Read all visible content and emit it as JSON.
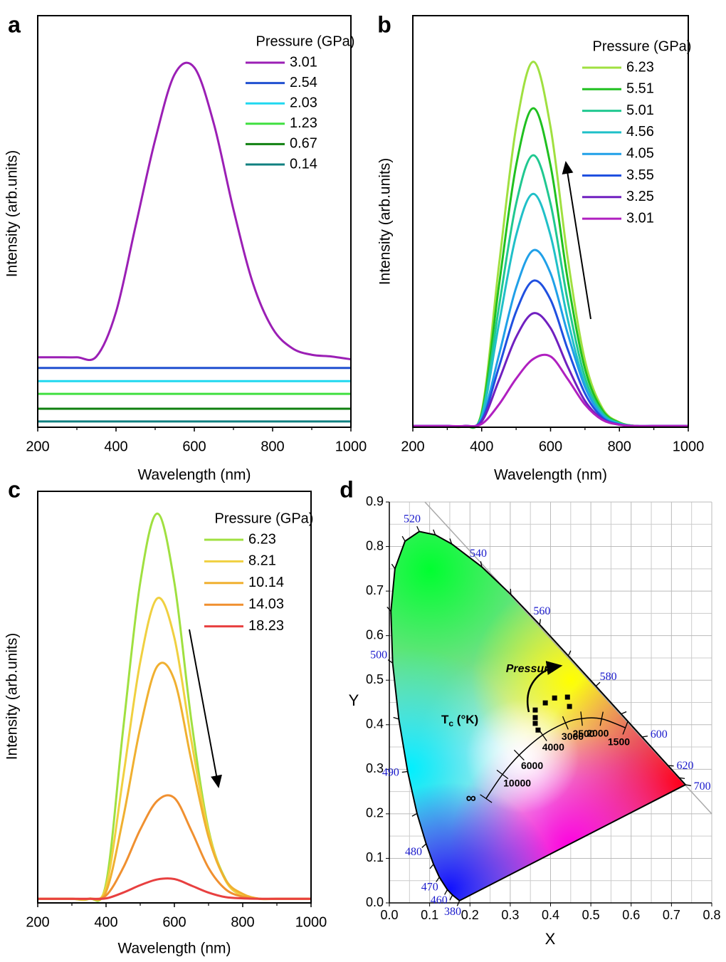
{
  "chart_data": [
    {
      "type": "line",
      "panel_label": "a",
      "xlabel": "Wavelength (nm)",
      "ylabel": "Intensity (arb.units)",
      "legend_title": "Pressure (GPa)",
      "legend": "upper right",
      "grid": false,
      "xlim": [
        200,
        1000
      ],
      "ylim": [
        0,
        100
      ],
      "xticks": [
        200,
        400,
        600,
        800,
        1000
      ],
      "x": [
        200,
        250,
        300,
        350,
        400,
        450,
        500,
        550,
        600,
        650,
        700,
        750,
        800,
        850,
        900,
        950,
        1000
      ],
      "series": [
        {
          "name": "3.01",
          "color": "#9b1fb5",
          "values": [
            17,
            17,
            17,
            17.2,
            28,
            48.9,
            69.8,
            85.8,
            87.4,
            73.7,
            52.9,
            34.9,
            24,
            19.2,
            17.6,
            17.2,
            16.5
          ]
        },
        {
          "name": "2.54",
          "color": "#2050d0",
          "values": [
            14.4,
            14.4,
            14.4,
            14.4,
            14.4,
            14.4,
            14.4,
            14.4,
            14.4,
            14.4,
            14.4,
            14.4,
            14.4,
            14.4,
            14.4,
            14.4,
            14.4
          ]
        },
        {
          "name": "2.03",
          "color": "#20d8f0",
          "values": [
            11.2,
            11.2,
            11.2,
            11.2,
            11.2,
            11.2,
            11.2,
            11.2,
            11.2,
            11.2,
            11.2,
            11.2,
            11.2,
            11.2,
            11.2,
            11.2,
            11.2
          ]
        },
        {
          "name": "1.23",
          "color": "#40e040",
          "values": [
            8.1,
            8.1,
            8.1,
            8.1,
            8.1,
            8.1,
            8.1,
            8.1,
            8.1,
            8.1,
            8.1,
            8.1,
            8.1,
            8.1,
            8.1,
            8.1,
            8.1
          ]
        },
        {
          "name": "0.67",
          "color": "#108010",
          "values": [
            4.5,
            4.5,
            4.5,
            4.5,
            4.5,
            4.5,
            4.5,
            4.5,
            4.5,
            4.5,
            4.5,
            4.5,
            4.5,
            4.5,
            4.5,
            4.5,
            4.5
          ]
        },
        {
          "name": "0.14",
          "color": "#108080",
          "values": [
            1.4,
            1.4,
            1.4,
            1.4,
            1.4,
            1.4,
            1.4,
            1.4,
            1.4,
            1.4,
            1.4,
            1.4,
            1.4,
            1.4,
            1.4,
            1.4,
            1.4
          ]
        }
      ]
    },
    {
      "type": "line",
      "panel_label": "b",
      "xlabel": "Wavelength (nm)",
      "ylabel": "Intensity (arb.units)",
      "legend_title": "Pressure (GPa)",
      "legend": "upper right",
      "grid": false,
      "xlim": [
        200,
        1000
      ],
      "ylim": [
        0,
        100
      ],
      "xticks": [
        200,
        400,
        600,
        800,
        1000
      ],
      "x": [
        200,
        250,
        300,
        350,
        400,
        450,
        500,
        550,
        600,
        650,
        700,
        750,
        800,
        850,
        900,
        950,
        1000
      ],
      "series": [
        {
          "name": "6.23",
          "color": "#a0e040",
          "values": [
            0.3,
            0.3,
            0.3,
            0.3,
            3.8,
            39.2,
            72.9,
            88.8,
            72.9,
            41.0,
            16.2,
            4.7,
            1.2,
            0.3,
            0.3,
            0.3,
            0.3
          ]
        },
        {
          "name": "5.51",
          "color": "#20c020",
          "values": [
            0.3,
            0.3,
            0.3,
            0.3,
            3.4,
            34.3,
            63.6,
            77.5,
            63.6,
            35.8,
            14.2,
            4.2,
            1.1,
            0.3,
            0.3,
            0.3,
            0.3
          ]
        },
        {
          "name": "5.01",
          "color": "#20c890",
          "values": [
            0.3,
            0.3,
            0.3,
            0.3,
            2.9,
            29.2,
            54.3,
            66.1,
            54.3,
            30.6,
            12.1,
            3.6,
            1.0,
            0.3,
            0.3,
            0.3,
            0.3
          ]
        },
        {
          "name": "4.56",
          "color": "#20c0c8",
          "values": [
            0.3,
            0.3,
            0.3,
            0.3,
            2.6,
            25.1,
            46.6,
            56.7,
            46.6,
            26.2,
            10.5,
            3.1,
            0.9,
            0.3,
            0.3,
            0.3,
            0.3
          ]
        },
        {
          "name": "4.05",
          "color": "#20a0e8",
          "values": [
            0.3,
            0.3,
            0.3,
            0.3,
            2.0,
            17.5,
            33.9,
            43,
            37.4,
            22.7,
            9.8,
            2.9,
            0.7,
            0.3,
            0.3,
            0.3,
            0.3
          ]
        },
        {
          "name": "3.55",
          "color": "#2050e0",
          "values": [
            0.3,
            0.3,
            0.3,
            0.3,
            1.7,
            14.6,
            28.1,
            35.6,
            31,
            18.9,
            8.2,
            2.4,
            0.7,
            0.3,
            0.3,
            0.3,
            0.3
          ]
        },
        {
          "name": "3.25",
          "color": "#7020c0",
          "values": [
            0.3,
            0.3,
            0.3,
            0.3,
            1.4,
            11.4,
            21.9,
            27.7,
            24.1,
            14.7,
            6.4,
            2,
            0.6,
            0.3,
            0.3,
            0.3,
            0.3
          ]
        },
        {
          "name": "3.01",
          "color": "#b020c0",
          "values": [
            0.3,
            0.3,
            0.3,
            0.3,
            0.8,
            5.5,
            11.8,
            16.6,
            17.2,
            11.7,
            5.5,
            1.8,
            0.6,
            0.3,
            0.3,
            0.3,
            0.3
          ]
        }
      ]
    },
    {
      "type": "line",
      "panel_label": "c",
      "xlabel": "Wavelength (nm)",
      "ylabel": "Intensity (arb.units)",
      "legend_title": "Pressure (GPa)",
      "legend": "upper right",
      "grid": false,
      "xlim": [
        200,
        1000
      ],
      "ylim": [
        0,
        100
      ],
      "xticks": [
        200,
        400,
        600,
        800,
        1000
      ],
      "x": [
        200,
        250,
        300,
        350,
        400,
        450,
        500,
        550,
        600,
        650,
        700,
        750,
        800,
        850,
        900,
        950,
        1000
      ],
      "series": [
        {
          "name": "6.23",
          "color": "#a0e040",
          "values": [
            1,
            1,
            1,
            1,
            4.7,
            42.2,
            77.8,
            94.6,
            77.8,
            44.1,
            17.8,
            5.7,
            1.9,
            1,
            1,
            1,
            1
          ]
        },
        {
          "name": "8.21",
          "color": "#f0d040",
          "values": [
            1,
            1,
            1,
            1,
            3.9,
            30.5,
            58.5,
            74,
            64.4,
            39.3,
            17.2,
            5.4,
            1.7,
            1,
            1,
            1,
            1
          ]
        },
        {
          "name": "10.14",
          "color": "#f0b030",
          "values": [
            1,
            1,
            1,
            1,
            2.7,
            20.6,
            42.5,
            57.5,
            54.1,
            34.5,
            16,
            5.6,
            2.2,
            1,
            1,
            1,
            1
          ]
        },
        {
          "name": "14.03",
          "color": "#f09030",
          "values": [
            1,
            1,
            1,
            1,
            1.8,
            8.5,
            17.8,
            24.8,
            25.5,
            17.5,
            8.5,
            3.3,
            1.5,
            1,
            1,
            1,
            1
          ]
        },
        {
          "name": "18.23",
          "color": "#e84040",
          "values": [
            1,
            1,
            1,
            1,
            1.1,
            2.5,
            4.3,
            5.7,
            5.8,
            4.2,
            2.5,
            1.4,
            1.1,
            1,
            1,
            1,
            1
          ]
        }
      ]
    },
    {
      "type": "scatter",
      "panel_label": "d",
      "xlabel": "X",
      "ylabel": "Y",
      "grid": true,
      "color": "#000000",
      "annotation": "Pressure",
      "tc_label": {
        "main": "T",
        "sub": "c",
        "rest": " (°K)"
      },
      "xlim": [
        0,
        0.8
      ],
      "ylim": [
        0,
        0.9
      ],
      "xticks": [
        {
          "value": 0,
          "label": "0.0"
        },
        0.1,
        0.2,
        0.3,
        0.4,
        0.5,
        0.6,
        0.7,
        0.8
      ],
      "yticks": [
        {
          "value": 0,
          "label": "0.0"
        },
        0.1,
        0.2,
        0.3,
        0.4,
        0.5,
        0.6,
        0.7,
        0.8,
        0.9
      ],
      "x": [
        0.362,
        0.362,
        0.362,
        0.369,
        0.387,
        0.41,
        0.442,
        0.447
      ],
      "values": [
        0.433,
        0.416,
        0.403,
        0.388,
        0.449,
        0.46,
        0.462,
        0.441
      ],
      "locus": {
        "x": [
          0.1741,
          0.1566,
          0.144,
          0.1241,
          0.1096,
          0.0913,
          0.0687,
          0.0454,
          0.0235,
          0.0082,
          0.0039,
          0.0139,
          0.0389,
          0.0743,
          0.1142,
          0.1547,
          0.2296,
          0.3016,
          0.3731,
          0.4441,
          0.5125,
          0.5752,
          0.627,
          0.6915,
          0.719,
          0.7347
        ],
        "y": [
          0.005,
          0.0177,
          0.0297,
          0.0578,
          0.0868,
          0.1327,
          0.2007,
          0.295,
          0.4127,
          0.5384,
          0.6548,
          0.7502,
          0.812,
          0.8338,
          0.8262,
          0.8059,
          0.7543,
          0.6923,
          0.6245,
          0.5547,
          0.4866,
          0.4242,
          0.3725,
          0.3083,
          0.2809,
          0.2653
        ],
        "labels": [
          380,
          null,
          460,
          470,
          null,
          480,
          null,
          490,
          null,
          500,
          null,
          null,
          null,
          520,
          null,
          null,
          540,
          null,
          560,
          null,
          580,
          null,
          600,
          620,
          null,
          700
        ]
      },
      "planckian": {
        "T": [
          "∞",
          10000,
          6000,
          4000,
          3000,
          2500,
          2000,
          1500
        ],
        "x": [
          0.2399,
          0.2807,
          0.3221,
          0.3805,
          0.4369,
          0.477,
          0.5267,
          0.5857
        ],
        "y": [
          0.2342,
          0.2884,
          0.3318,
          0.3768,
          0.4041,
          0.4137,
          0.4133,
          0.3931
        ]
      }
    }
  ]
}
